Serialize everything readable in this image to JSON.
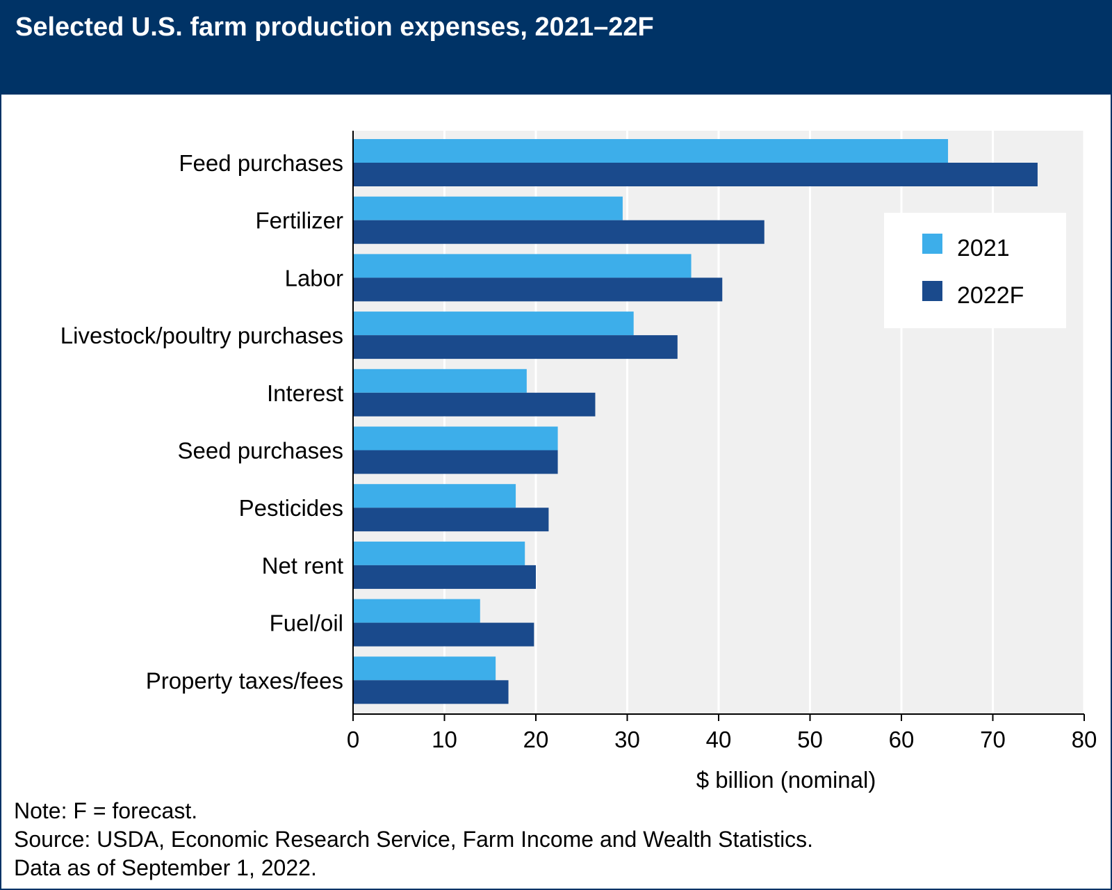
{
  "header": {
    "title": "Selected U.S. farm production expenses, 2021–22F"
  },
  "chart_data": {
    "type": "bar",
    "orientation": "horizontal",
    "title": "Selected U.S. farm production expenses, 2021–22F",
    "categories": [
      "Feed purchases",
      "Fertilizer",
      "Labor",
      "Livestock/poultry purchases",
      "Interest",
      "Seed purchases",
      "Pesticides",
      "Net rent",
      "Fuel/oil",
      "Property taxes/fees"
    ],
    "series": [
      {
        "name": "2021",
        "color": "#3daeea",
        "values": [
          65.1,
          29.5,
          37.0,
          30.7,
          19.0,
          22.4,
          17.8,
          18.8,
          13.9,
          15.6
        ]
      },
      {
        "name": "2022F",
        "color": "#1a4a8c",
        "values": [
          74.9,
          45.0,
          40.4,
          35.5,
          26.5,
          22.4,
          21.4,
          20.0,
          19.8,
          17.0
        ]
      }
    ],
    "xlabel": "$ billion (nominal)",
    "ylabel": "",
    "xlim": [
      0,
      80
    ],
    "xticks": [
      "0",
      "10",
      "20",
      "30",
      "40",
      "50",
      "60",
      "70",
      "80"
    ],
    "grid": true,
    "legend_position": "top-right",
    "plot_background": "#f0f0f0"
  },
  "footnotes": {
    "note": "Note: F = forecast.",
    "source": "Source: USDA, Economic Research Service, Farm Income and Wealth Statistics.",
    "date": "Data as of September 1, 2022."
  }
}
